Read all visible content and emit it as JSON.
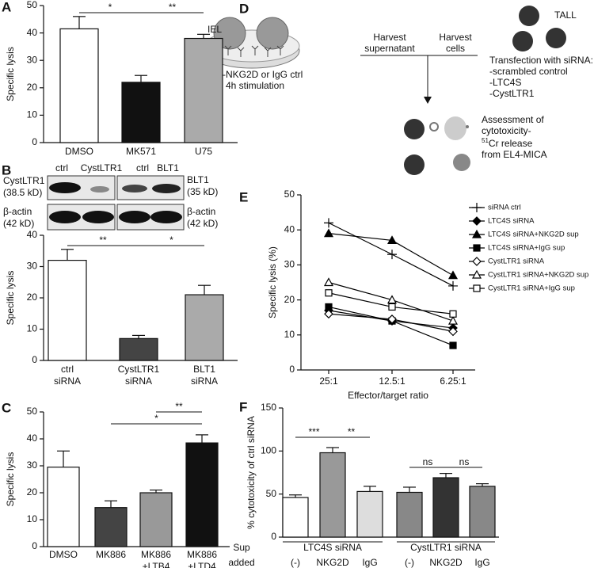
{
  "panel_letters": [
    "A",
    "B",
    "C",
    "D",
    "E",
    "F"
  ],
  "chart_data": [
    {
      "type": "bar",
      "ylabel": "Specific lysis",
      "categories": [
        "DMSO",
        "MK571",
        "U75"
      ],
      "values": [
        41.5,
        22,
        38
      ],
      "errors": [
        4.5,
        2.5,
        1.5
      ],
      "colors": [
        "#ffffff",
        "#111111",
        "#aaaaaa"
      ],
      "ylim": [
        0,
        50
      ],
      "yticks": [
        0,
        10,
        20,
        30,
        40,
        50
      ],
      "significance": [
        {
          "from": 0,
          "to": 1,
          "label": "*"
        },
        {
          "from": 1,
          "to": 2,
          "label": "**"
        }
      ]
    },
    {
      "type": "bar",
      "ylabel": "Specific lysis",
      "categories": [
        [
          "ctrl",
          "siRNA"
        ],
        [
          "CystLTR1",
          "siRNA"
        ],
        [
          "BLT1",
          "siRNA"
        ]
      ],
      "values": [
        32,
        7,
        21
      ],
      "errors": [
        3.5,
        1,
        3
      ],
      "colors": [
        "#ffffff",
        "#444444",
        "#aaaaaa"
      ],
      "ylim": [
        0,
        40
      ],
      "yticks": [
        0,
        10,
        20,
        30,
        40
      ],
      "significance": [
        {
          "from": 0,
          "to": 1,
          "label": "**"
        },
        {
          "from": 1,
          "to": 2,
          "label": "*"
        }
      ]
    },
    {
      "type": "bar",
      "ylabel": "Specific lysis",
      "categories": [
        "DMSO",
        "MK886",
        [
          "MK886",
          "+LTB4"
        ],
        [
          "MK886",
          "+LTD4"
        ]
      ],
      "values": [
        29.5,
        14.5,
        20,
        38.5
      ],
      "errors": [
        6,
        2.5,
        1,
        3
      ],
      "colors": [
        "#ffffff",
        "#444444",
        "#999999",
        "#111111"
      ],
      "ylim": [
        0,
        50
      ],
      "yticks": [
        0,
        10,
        20,
        30,
        40,
        50
      ],
      "significance": [
        {
          "from": 1,
          "to": 3,
          "label": "*"
        },
        {
          "from": 2,
          "to": 3,
          "label": "**"
        }
      ]
    },
    {
      "type": "line",
      "ylabel": "Specific lysis (%)",
      "xlabel": "Effector/target ratio",
      "categories": [
        "25:1",
        "12.5:1",
        "6.25:1"
      ],
      "ylim": [
        0,
        50
      ],
      "yticks": [
        0,
        10,
        20,
        30,
        40,
        50
      ],
      "series": [
        {
          "name": "siRNA ctrl",
          "marker": "plus",
          "color": "#000000",
          "values": [
            42,
            33,
            24
          ]
        },
        {
          "name": "LTC4S siRNA",
          "marker": "filled-diamond",
          "color": "#000000",
          "values": [
            17,
            14,
            12
          ]
        },
        {
          "name": "LTC4S siRNA+NKG2D sup",
          "marker": "filled-triangle",
          "color": "#000000",
          "values": [
            39,
            37,
            27
          ]
        },
        {
          "name": "LTC4S siRNA+IgG sup",
          "marker": "filled-square",
          "color": "#000000",
          "values": [
            18,
            14,
            7
          ]
        },
        {
          "name": "CystLTR1 siRNA",
          "marker": "open-diamond",
          "color": "#000000",
          "values": [
            16,
            14.5,
            11
          ]
        },
        {
          "name": "CystLTR1 siRNA+NKG2D sup",
          "marker": "open-triangle",
          "color": "#000000",
          "values": [
            25,
            20,
            14
          ]
        },
        {
          "name": "CystLTR1 siRNA+IgG sup",
          "marker": "open-square",
          "color": "#000000",
          "values": [
            22,
            18,
            16
          ]
        }
      ]
    },
    {
      "type": "bar",
      "ylabel": "% cytotoxicity of ctrl siRNA",
      "categories": [
        "(-)",
        "NKG2D",
        "IgG",
        "(-)",
        "NKG2D",
        "IgG"
      ],
      "values": [
        46,
        98,
        53,
        52,
        69,
        59
      ],
      "errors": [
        3,
        6,
        6,
        6,
        5,
        3
      ],
      "colors": [
        "#ffffff",
        "#999999",
        "#dddddd",
        "#888888",
        "#333333",
        "#888888"
      ],
      "ylim": [
        0,
        150
      ],
      "yticks": [
        0,
        50,
        100,
        150
      ],
      "significance": [
        {
          "from": 0,
          "to": 1,
          "label": "***"
        },
        {
          "from": 1,
          "to": 2,
          "label": "**"
        },
        {
          "from": 3,
          "to": 4,
          "label": "ns"
        },
        {
          "from": 4,
          "to": 5,
          "label": "ns"
        }
      ],
      "groups": [
        {
          "label": "LTC4S siRNA",
          "from": 0,
          "to": 2
        },
        {
          "label": "CystLTR1 siRNA",
          "from": 3,
          "to": 5
        }
      ],
      "group_title": [
        "Sup",
        "added"
      ]
    }
  ],
  "blot": {
    "lane_labels": [
      "ctrl",
      "CystLTR1",
      "ctrl",
      "BLT1"
    ],
    "left_labels": [
      [
        "CystLTR1",
        "(38.5 kD)"
      ],
      [
        "β-actin",
        "(42 kD)"
      ]
    ],
    "right_labels": [
      [
        "BLT1",
        "(35 kD)"
      ],
      [
        "β-actin",
        "(42 kD)"
      ]
    ]
  },
  "diagram": {
    "iel": "IEL",
    "stimulation": [
      "anti-NKG2D or IgG ctrl",
      "4h stimulation"
    ],
    "harvest_supernatant": [
      "Harvest",
      "supernatant"
    ],
    "harvest_cells": [
      "Harvest",
      "cells"
    ],
    "tall": "TALL",
    "transfection": [
      "Transfection with siRNA:",
      "-scrambled control",
      "-LTC4S",
      "-CystLTR1"
    ],
    "assessment": [
      "Assessment of",
      "cytotoxicity-"
    ],
    "isotope": "51",
    "release": "Cr release",
    "target": "from EL4-MICA"
  }
}
